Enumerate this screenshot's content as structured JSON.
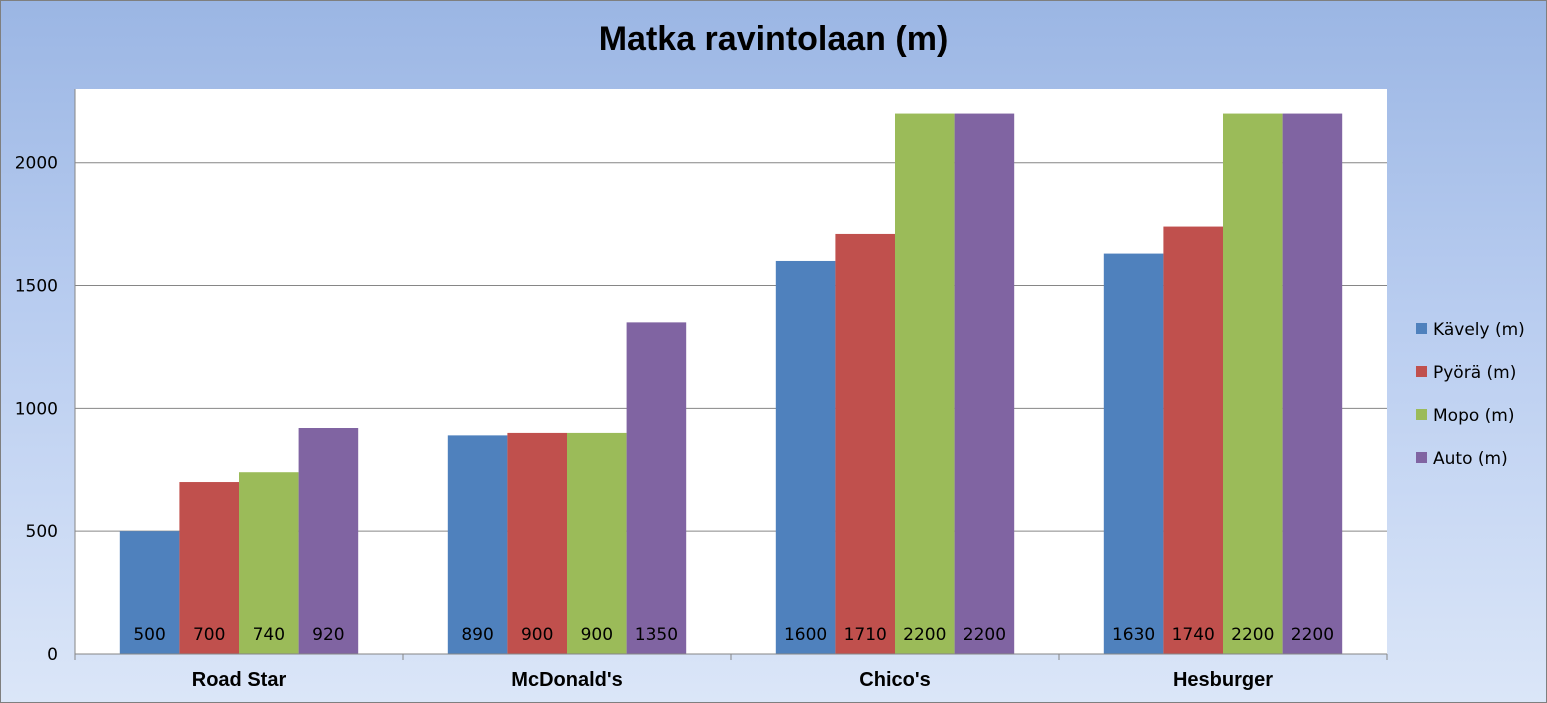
{
  "chart_data": {
    "type": "bar",
    "title": "Matka ravintolaan (m)",
    "xlabel": "",
    "ylabel": "",
    "categories": [
      "Road Star",
      "McDonald's",
      "Chico's",
      "Hesburger"
    ],
    "series": [
      {
        "name": "Kävely (m)",
        "color": "#4f81bd",
        "values": [
          500,
          890,
          1600,
          1630
        ]
      },
      {
        "name": "Pyörä (m)",
        "color": "#c0504d",
        "values": [
          700,
          900,
          1710,
          1740
        ]
      },
      {
        "name": "Mopo (m)",
        "color": "#9bbb59",
        "values": [
          740,
          900,
          2200,
          2200
        ]
      },
      {
        "name": "Auto (m)",
        "color": "#8064a2",
        "values": [
          920,
          1350,
          2200,
          2200
        ]
      }
    ],
    "ylim": [
      0,
      2300
    ],
    "yticks": [
      0,
      500,
      1000,
      1500,
      2000
    ],
    "grid": true,
    "legend_position": "right",
    "data_labels": "inside-base"
  }
}
